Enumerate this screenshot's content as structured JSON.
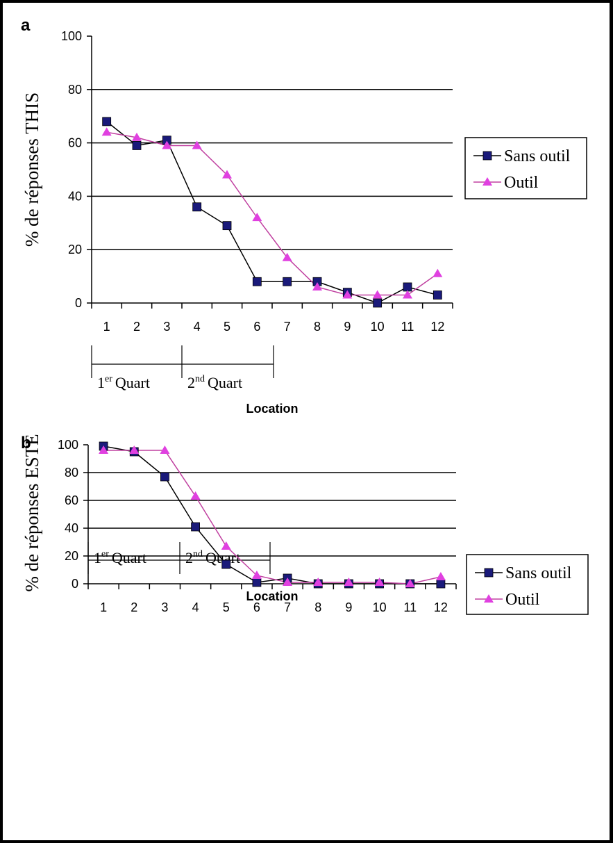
{
  "chart_data": [
    {
      "type": "line",
      "panel": "a",
      "ylabel": "% de réponses THIS",
      "xlabel": "Location",
      "categories": [
        "1",
        "2",
        "3",
        "4",
        "5",
        "6",
        "7",
        "8",
        "9",
        "10",
        "11",
        "12"
      ],
      "yticks": [
        "0",
        "20",
        "40",
        "60",
        "80",
        "100"
      ],
      "ylim": [
        0,
        100
      ],
      "grid": true,
      "legend_position": "right",
      "quarters": [
        {
          "sup_base": "1",
          "sup": "er",
          "label": "Quart"
        },
        {
          "sup_base": "2",
          "sup": "nd",
          "label": "Quart"
        }
      ],
      "series": [
        {
          "name": "Sans outil",
          "marker": "square",
          "color": "#1a1a7a",
          "line_color": "#000000",
          "values": [
            68,
            59,
            61,
            36,
            29,
            8,
            8,
            8,
            4,
            0,
            6,
            3
          ]
        },
        {
          "name": "Outil",
          "marker": "triangle",
          "color": "#e040e0",
          "line_color": "#c040a0",
          "values": [
            64,
            62,
            59,
            59,
            48,
            32,
            17,
            6,
            3,
            3,
            3,
            11
          ]
        }
      ]
    },
    {
      "type": "line",
      "panel": "b",
      "ylabel": "% de réponses ESTE",
      "xlabel": "Location",
      "categories": [
        "1",
        "2",
        "3",
        "4",
        "5",
        "6",
        "7",
        "8",
        "9",
        "10",
        "11",
        "12"
      ],
      "yticks": [
        "0",
        "20",
        "40",
        "60",
        "80",
        "100"
      ],
      "ylim": [
        0,
        100
      ],
      "grid": true,
      "legend_position": "right",
      "quarters": [
        {
          "sup_base": "1",
          "sup": "er",
          "label": "Quart"
        },
        {
          "sup_base": "2",
          "sup": "nd",
          "label": "Quart"
        }
      ],
      "series": [
        {
          "name": "Sans outil",
          "marker": "square",
          "color": "#1a1a7a",
          "line_color": "#000000",
          "values": [
            99,
            95,
            77,
            41,
            14,
            1,
            4,
            0,
            0,
            0,
            0,
            0
          ]
        },
        {
          "name": "Outil",
          "marker": "triangle",
          "color": "#e040e0",
          "line_color": "#c040a0",
          "values": [
            96,
            96,
            96,
            63,
            27,
            6,
            1,
            1,
            1,
            1,
            0,
            5
          ]
        }
      ]
    }
  ]
}
